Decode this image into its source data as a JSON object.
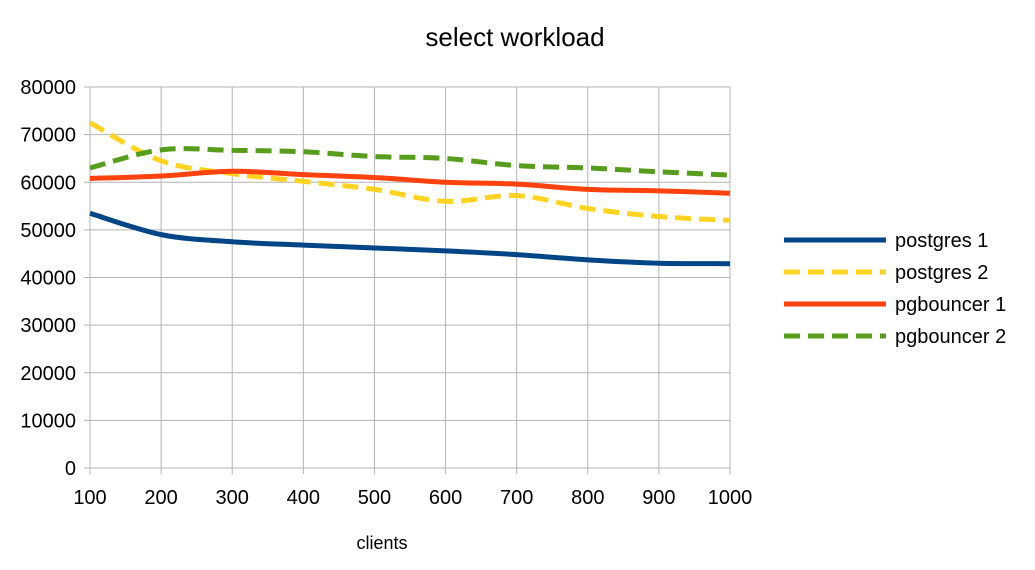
{
  "chart_data": {
    "type": "line",
    "title": "select workload",
    "xlabel": "clients",
    "ylabel": "",
    "x": [
      100,
      200,
      300,
      400,
      500,
      600,
      700,
      800,
      900,
      1000
    ],
    "xlim": [
      100,
      1000
    ],
    "ylim": [
      0,
      80000
    ],
    "yticks": [
      0,
      10000,
      20000,
      30000,
      40000,
      50000,
      60000,
      70000,
      80000
    ],
    "grid": true,
    "legend": "right",
    "series": [
      {
        "name": "postgres 1",
        "color": "#004586",
        "dash": "solid",
        "values": [
          53500,
          49000,
          47500,
          46800,
          46200,
          45600,
          44800,
          43700,
          43000,
          42900
        ]
      },
      {
        "name": "postgres 2",
        "color": "#ffd320",
        "dash": "dashed",
        "values": [
          72500,
          64500,
          61800,
          60200,
          58500,
          56000,
          57200,
          54500,
          52800,
          52000
        ]
      },
      {
        "name": "pgbouncer 1",
        "color": "#ff420e",
        "dash": "solid",
        "values": [
          60800,
          61300,
          62300,
          61600,
          61000,
          60000,
          59600,
          58500,
          58200,
          57700
        ]
      },
      {
        "name": "pgbouncer 2",
        "color": "#579d1c",
        "dash": "dashed",
        "values": [
          63000,
          66800,
          66700,
          66400,
          65400,
          65000,
          63500,
          63000,
          62200,
          61500
        ]
      }
    ]
  }
}
